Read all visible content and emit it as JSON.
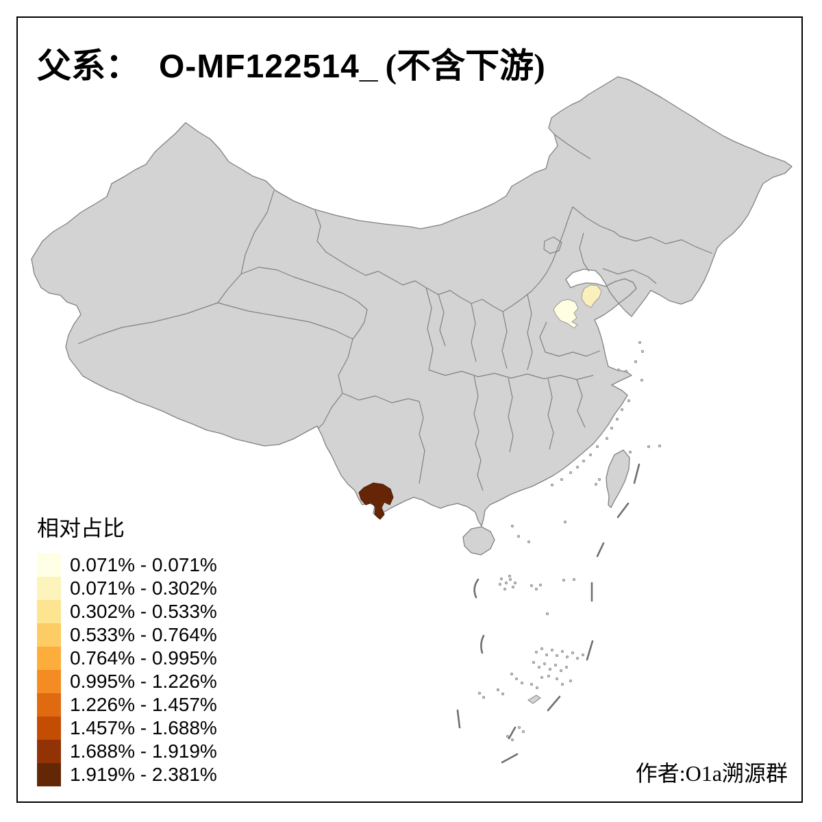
{
  "title": {
    "prefix": "父系：",
    "haplogroup": "O-MF122514_",
    "suffix": "(不含下游)"
  },
  "legend": {
    "title": "相对占比",
    "classes": [
      {
        "label": "0.071% - 0.071%",
        "color": "#FFFFE5"
      },
      {
        "label": "0.071% - 0.302%",
        "color": "#FCF4BA"
      },
      {
        "label": "0.302% - 0.533%",
        "color": "#FDE490"
      },
      {
        "label": "0.533% - 0.764%",
        "color": "#FDCC64"
      },
      {
        "label": "0.764% - 0.995%",
        "color": "#FDAD3C"
      },
      {
        "label": "0.995% - 1.226%",
        "color": "#F58B23"
      },
      {
        "label": "1.226% - 1.457%",
        "color": "#E06A10"
      },
      {
        "label": "1.457% - 1.688%",
        "color": "#C34D03"
      },
      {
        "label": "1.688% - 1.919%",
        "color": "#913305"
      },
      {
        "label": "1.919% - 2.381%",
        "color": "#632706"
      }
    ]
  },
  "credit": "作者:O1a溯源群",
  "map": {
    "background": "#FFFFFF",
    "base_fill": "#D3D3D3",
    "border_color": "#808080",
    "highlighted_regions": [
      {
        "id": "region-shandong-west",
        "value_range": "0.071% - 0.071%",
        "color": "#FFFEE3"
      },
      {
        "id": "region-shandong-east",
        "value_range": "0.071% - 0.302%",
        "color": "#FAF0BC"
      },
      {
        "id": "region-yunnan-south",
        "value_range": "1.919% - 2.381%",
        "color": "#662506"
      }
    ]
  },
  "chart_data": {
    "type": "choropleth",
    "title": "父系： O-MF122514_ (不含下游)",
    "legend_title": "相对占比",
    "value_bins": [
      "0.071% - 0.071%",
      "0.071% - 0.302%",
      "0.302% - 0.533%",
      "0.533% - 0.764%",
      "0.764% - 0.995%",
      "0.995% - 1.226%",
      "1.226% - 1.457%",
      "1.457% - 1.688%",
      "1.688% - 1.919%",
      "1.919% - 2.381%"
    ],
    "shaded_regions": [
      {
        "region": "region-shandong-west",
        "bin": "0.071% - 0.071%"
      },
      {
        "region": "region-shandong-east",
        "bin": "0.071% - 0.302%"
      },
      {
        "region": "region-yunnan-south",
        "bin": "1.919% - 2.381%"
      }
    ],
    "no_data_fill": "#D3D3D3"
  }
}
